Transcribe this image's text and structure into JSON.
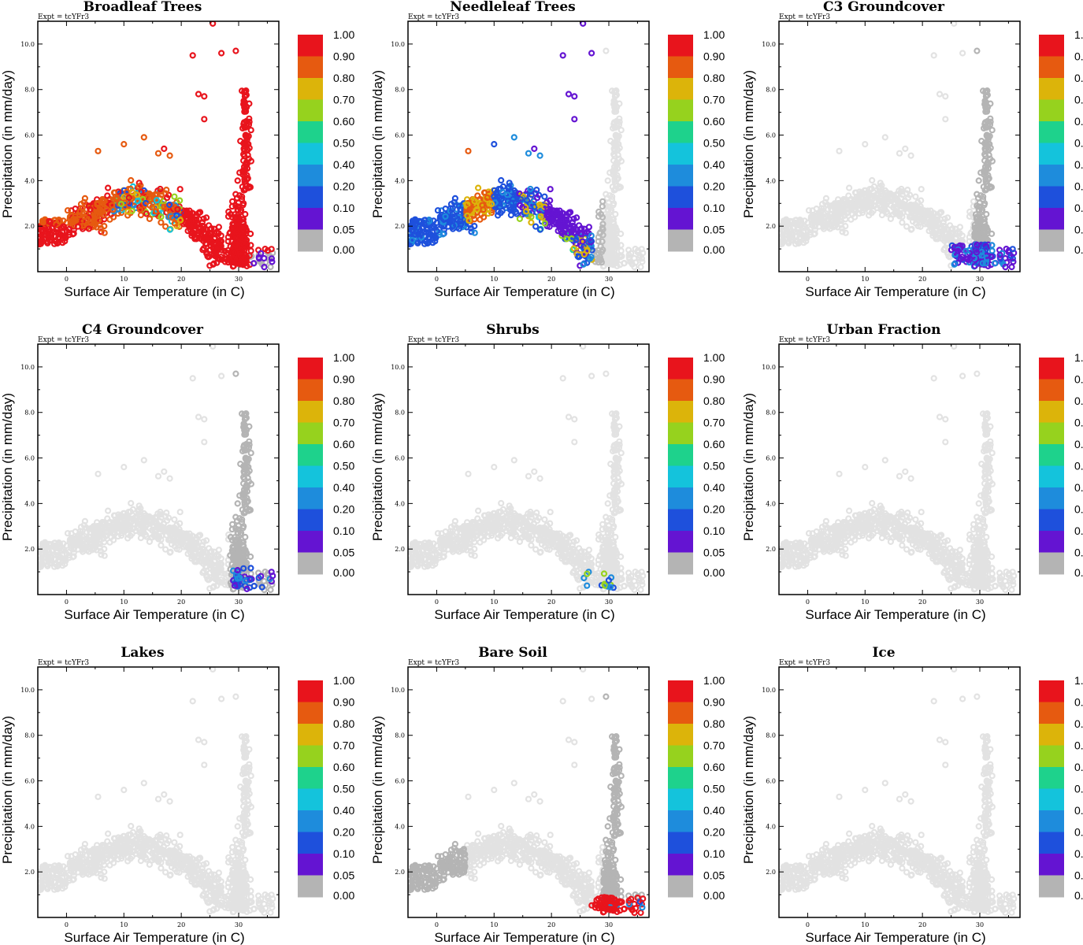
{
  "figure": {
    "experiment_label": "Expt = tcYFr3",
    "xlabel": "Surface Air Temperature (in C)",
    "ylabel": "Precipitation (in mm/day)",
    "xlim": [
      -5,
      37
    ],
    "ylim": [
      0,
      11
    ],
    "x_ticks": [
      "0",
      "10",
      "20",
      "30"
    ],
    "y_ticks": [
      "2.0",
      "4.0",
      "6.0",
      "8.0",
      "10.0"
    ],
    "colorbar": {
      "labels": [
        "1.00",
        "0.90",
        "0.80",
        "0.70",
        "0.60",
        "0.50",
        "0.40",
        "0.20",
        "0.10",
        "0.05",
        "0.00"
      ],
      "colors": [
        "#e8141c",
        "#e65a10",
        "#dcb40a",
        "#96d21e",
        "#1ed28c",
        "#14c3dc",
        "#1e8cdc",
        "#1e50dc",
        "#6414d2",
        "#b4b4b4"
      ]
    }
  },
  "chart_data": [
    {
      "type": "scatter",
      "title": "Broadleaf Trees",
      "note": "Dominant fraction high (red/orange) across cool-to-warm wet points; blue/cyan mixed near 10-20 C"
    },
    {
      "type": "scatter",
      "title": "Needleleaf Trees",
      "note": "Blue/cyan dominant at cold temperatures; purple 20-30 C; gray at hottest points"
    },
    {
      "type": "scatter",
      "title": "C3 Groundcover",
      "note": "Mostly zero; low fractions near 25-35 C, low precipitation"
    },
    {
      "type": "scatter",
      "title": "C4 Groundcover",
      "note": "Mostly zero; low fractions at 28-35 C"
    },
    {
      "type": "scatter",
      "title": "Shrubs",
      "note": "Nearly all zero; a few low-fraction points near 25-30 C"
    },
    {
      "type": "scatter",
      "title": "Urban Fraction",
      "note": "All zero"
    },
    {
      "type": "scatter",
      "title": "Lakes",
      "note": "All zero"
    },
    {
      "type": "scatter",
      "title": "Bare Soil",
      "note": "High fraction (red) at 28-36 C with precipitation below 1 mm/day"
    },
    {
      "type": "scatter",
      "title": "Ice",
      "note": "All zero"
    }
  ]
}
